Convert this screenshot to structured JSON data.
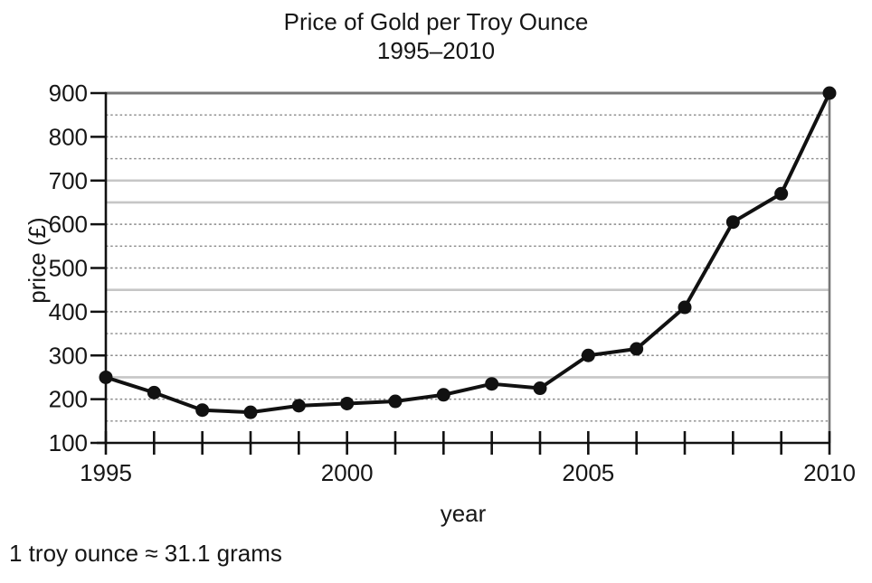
{
  "title": {
    "line1": "Price of Gold per Troy Ounce",
    "line2": "1995–2010"
  },
  "axes": {
    "y_label": "price (£)",
    "x_label": "year",
    "y_tick_labels": [
      "100",
      "200",
      "300",
      "400",
      "500",
      "600",
      "700",
      "800",
      "900"
    ],
    "x_tick_labels": [
      "1995",
      "2000",
      "2005",
      "2010"
    ]
  },
  "footnote": "1 troy ounce ≈ 31.1 grams",
  "chart_data": {
    "type": "line",
    "title": "Price of Gold per Troy Ounce 1995–2010",
    "xlabel": "year",
    "ylabel": "price (£)",
    "x": [
      1995,
      1996,
      1997,
      1998,
      1999,
      2000,
      2001,
      2002,
      2003,
      2004,
      2005,
      2006,
      2007,
      2008,
      2009,
      2010
    ],
    "values": [
      250,
      215,
      175,
      170,
      185,
      190,
      195,
      210,
      235,
      225,
      300,
      315,
      410,
      605,
      670,
      900
    ],
    "xlim": [
      1995,
      2010
    ],
    "ylim": [
      100,
      900
    ],
    "x_tick_step": 1,
    "x_labeled_ticks": [
      1995,
      2000,
      2005,
      2010
    ],
    "y_tick_step": 100,
    "solid_gridlines": [
      250,
      450,
      650,
      700
    ],
    "dotted_gridlines": [
      150,
      200,
      300,
      350,
      400,
      500,
      550,
      600,
      750,
      800,
      850
    ],
    "legend": "none",
    "grid": "on",
    "annotation": "1 troy ounce ≈ 31.1 grams",
    "line_color": "#111111",
    "solid_grid_color": "#c6c6c6",
    "dotted_grid_color": "#8a8a8a",
    "border_color": "#787878",
    "axis_color": "#111111",
    "marker": "filled-circle"
  }
}
